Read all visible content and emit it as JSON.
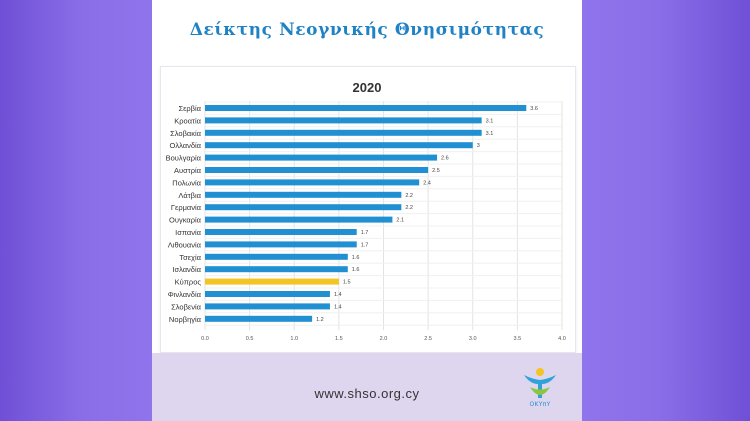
{
  "header": {
    "title": "Δείκτης Νεογνικής Θνησιμότητας"
  },
  "footer": {
    "url": "www.shso.org.cy",
    "logo_text": "ΟΚΥπΥ"
  },
  "colors": {
    "bar": "#2190d2",
    "highlight": "#f4c422",
    "title": "#1f82c4"
  },
  "chart_data": {
    "type": "bar",
    "orientation": "horizontal",
    "title": "2020",
    "categories": [
      "Σερβία",
      "Κροατία",
      "Σλοβακία",
      "Ολλανδία",
      "Βουλγαρία",
      "Αυστρία",
      "Πολωνία",
      "Λάτβια",
      "Γερμανία",
      "Ουγκαρία",
      "Ισπανία",
      "Λιθουανία",
      "Τσεχία",
      "Ισλανδία",
      "Κύπρος",
      "Φινλανδία",
      "Σλοβενία",
      "Νορβηγία"
    ],
    "values": [
      3.6,
      3.1,
      3.1,
      3,
      2.6,
      2.5,
      2.4,
      2.2,
      2.2,
      2.1,
      1.7,
      1.7,
      1.6,
      1.6,
      1.5,
      1.4,
      1.4,
      1.2
    ],
    "value_labels": [
      "3.6",
      "3.1",
      "3.1",
      "3",
      "2.6",
      "2.5",
      "2.4",
      "2.2",
      "2.2",
      "2.1",
      "1.7",
      "1.7",
      "1.6",
      "1.6",
      "1.5",
      "1.4",
      "1.4",
      "1.2"
    ],
    "highlight": "Κύπρος",
    "xlim": [
      0,
      4
    ],
    "xticks": [
      "0.0",
      "0.5",
      "1.0",
      "1.5",
      "2.0",
      "2.5",
      "3.0",
      "3.5",
      "4.0"
    ],
    "grid": true,
    "xlabel": "",
    "ylabel": ""
  }
}
